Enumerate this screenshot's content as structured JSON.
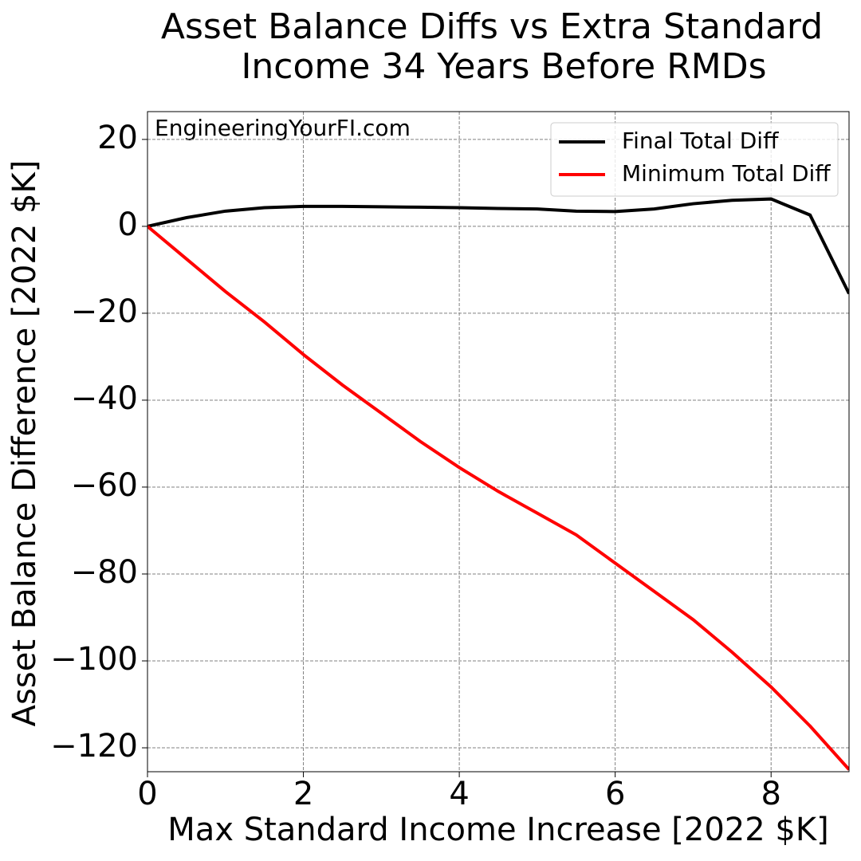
{
  "chart_data": {
    "type": "line",
    "title": [
      "Asset Balance Diffs vs Extra Standard",
      "Income 34 Years Before RMDs"
    ],
    "xlabel": "Max Standard Income Increase [2022 $K]",
    "ylabel": "Asset Balance Difference [2022 $K]",
    "annotation": "EngineeringYourFI.com",
    "x": [
      0,
      0.5,
      1,
      1.5,
      2,
      2.5,
      3,
      3.5,
      4,
      4.5,
      5,
      5.5,
      6,
      6.5,
      7,
      7.5,
      8,
      8.5,
      9
    ],
    "series": [
      {
        "name": "Final Total Diff",
        "color": "#000000",
        "values": [
          0,
          2,
          3.5,
          4.3,
          4.6,
          4.6,
          4.5,
          4.4,
          4.3,
          4.1,
          4.0,
          3.5,
          3.4,
          4.0,
          5.2,
          6.0,
          6.3,
          2.6,
          -15.5
        ]
      },
      {
        "name": "Minimum Total Diff",
        "color": "#ff0000",
        "values": [
          0,
          -7.5,
          -15,
          -22,
          -29.5,
          -36.5,
          -43,
          -49.5,
          -55.5,
          -61,
          -66,
          -71,
          -77.5,
          -84,
          -90.5,
          -98,
          -106,
          -115,
          -125
        ]
      }
    ],
    "xlim": [
      0,
      9
    ],
    "xticks": [
      0,
      2,
      4,
      6,
      8
    ],
    "ylim": [
      -125.5,
      26.4
    ],
    "yticks": [
      {
        "value": -120,
        "label": "−120"
      },
      {
        "value": -100,
        "label": "−100"
      },
      {
        "value": -80,
        "label": "−80"
      },
      {
        "value": -60,
        "label": "−60"
      },
      {
        "value": -40,
        "label": "−40"
      },
      {
        "value": -20,
        "label": "−20"
      },
      0,
      20
    ],
    "grid": true,
    "legend": "upper right"
  }
}
